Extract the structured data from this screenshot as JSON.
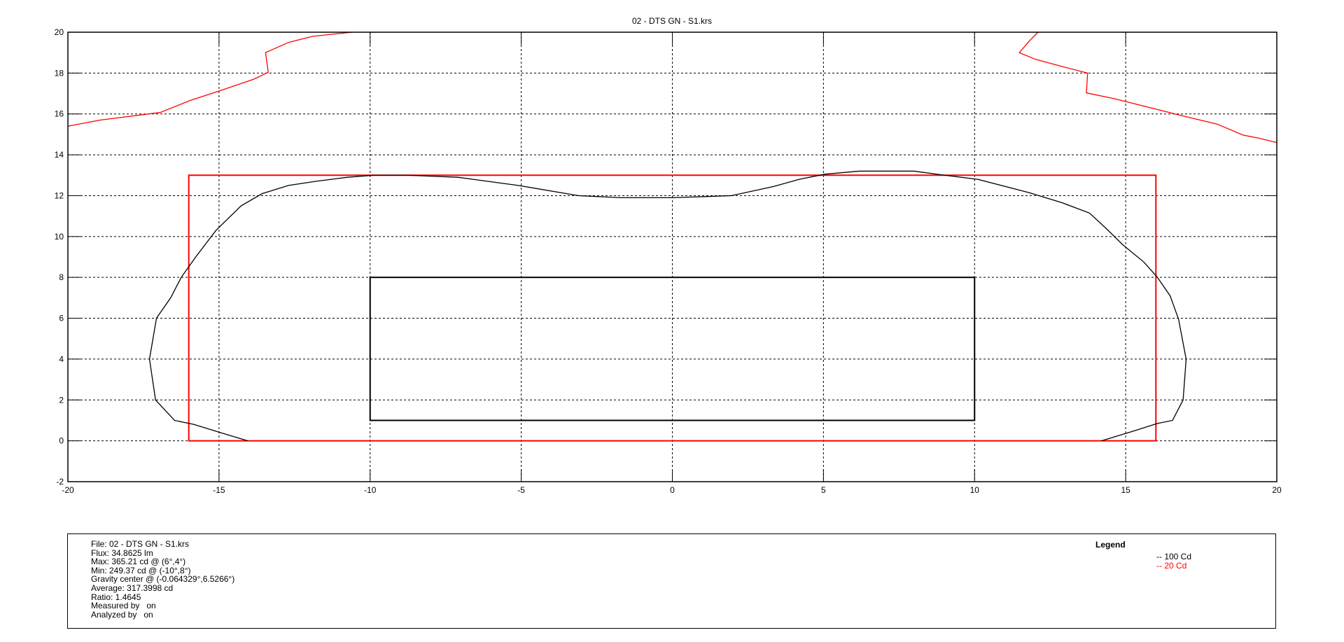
{
  "chart_data": {
    "type": "line",
    "title": "02 - DTS GN - S1.krs",
    "xlabel": "",
    "ylabel": "",
    "xlim": [
      -20,
      20
    ],
    "ylim": [
      -2,
      20
    ],
    "xticks": [
      -20,
      -15,
      -10,
      -5,
      0,
      5,
      10,
      15,
      20
    ],
    "yticks": [
      -2,
      0,
      2,
      4,
      6,
      8,
      10,
      12,
      14,
      16,
      18,
      20
    ],
    "grid": true,
    "legend_position": "bottom-right",
    "series": [
      {
        "name": "100 Cd",
        "color": "#000000",
        "points": [
          [
            -14.05,
            0
          ],
          [
            -14.84,
            0.35
          ],
          [
            -15.83,
            0.8
          ],
          [
            -16.47,
            1.0
          ],
          [
            -17.1,
            2.0
          ],
          [
            -17.3,
            4.0
          ],
          [
            -17.07,
            6.0
          ],
          [
            -16.6,
            7.0
          ],
          [
            -16.25,
            8.0
          ],
          [
            -15.77,
            9.0
          ],
          [
            -15.1,
            10.3
          ],
          [
            -14.27,
            11.5
          ],
          [
            -13.57,
            12.1
          ],
          [
            -12.7,
            12.5
          ],
          [
            -11.8,
            12.7
          ],
          [
            -10.75,
            12.9
          ],
          [
            -9.85,
            13.0
          ],
          [
            -8.8,
            13.0
          ],
          [
            -7.1,
            12.9
          ],
          [
            -5.1,
            12.5
          ],
          [
            -3.1,
            12.0
          ],
          [
            -1.7,
            11.9
          ],
          [
            0,
            11.9
          ],
          [
            1.95,
            12.0
          ],
          [
            3.35,
            12.45
          ],
          [
            4.2,
            12.8
          ],
          [
            5.05,
            13.05
          ],
          [
            6.18,
            13.2
          ],
          [
            8,
            13.2
          ],
          [
            9,
            13.0
          ],
          [
            10.1,
            12.8
          ],
          [
            11.8,
            12.15
          ],
          [
            12.9,
            11.65
          ],
          [
            13.8,
            11.15
          ],
          [
            14.35,
            10.4
          ],
          [
            14.9,
            9.6
          ],
          [
            15.6,
            8.75
          ],
          [
            16.05,
            8.0
          ],
          [
            16.47,
            7.1
          ],
          [
            16.75,
            5.95
          ],
          [
            17.0,
            4.0
          ],
          [
            16.9,
            2.0
          ],
          [
            16.55,
            1.0
          ],
          [
            16.05,
            0.85
          ],
          [
            15.2,
            0.45
          ],
          [
            14.2,
            0
          ]
        ]
      },
      {
        "name": "20 Cd",
        "color": "#ff0000",
        "points": [
          [
            -20,
            15.4
          ],
          [
            -18.93,
            15.7
          ],
          [
            -16.95,
            16.07
          ],
          [
            -15.97,
            16.65
          ],
          [
            -14.84,
            17.2
          ],
          [
            -13.85,
            17.7
          ],
          [
            -13.37,
            18.04
          ],
          [
            -13.46,
            19.0
          ],
          [
            -12.7,
            19.5
          ],
          [
            -11.9,
            19.8
          ],
          [
            -10.6,
            20
          ]
        ]
      },
      {
        "name": "20 Cd",
        "color": "#ff0000",
        "points": [
          [
            12.1,
            20
          ],
          [
            11.83,
            19.6
          ],
          [
            11.48,
            19.0
          ],
          [
            12.02,
            18.67
          ],
          [
            12.95,
            18.3
          ],
          [
            13.74,
            18.0
          ],
          [
            13.7,
            17.03
          ],
          [
            14.64,
            16.74
          ],
          [
            15.77,
            16.32
          ],
          [
            16.9,
            15.9
          ],
          [
            18.03,
            15.5
          ],
          [
            18.87,
            14.97
          ],
          [
            19.44,
            14.8
          ],
          [
            20,
            14.6
          ]
        ]
      }
    ],
    "rectangles": [
      {
        "color": "#ff0000",
        "x": [
          -16,
          16
        ],
        "y": [
          0,
          13
        ]
      },
      {
        "color": "#000000",
        "x": [
          -10,
          10
        ],
        "y": [
          1,
          8
        ]
      }
    ]
  },
  "info": {
    "lines": [
      "File: 02 - DTS GN - S1.krs",
      "Flux: 34.8625 lm",
      "Max: 365.21 cd @ (6°,4°)",
      "Min: 249.37 cd @ (-10°,8°)",
      "Gravity center @ (-0.064329°,6.5266°)",
      "Average: 317.3998 cd",
      "Ratio: 1.4645",
      "Measured by   on",
      "Analyzed by   on"
    ]
  },
  "legend": {
    "title": "Legend",
    "items": [
      {
        "label": "-- 100 Cd",
        "color": "#000000"
      },
      {
        "label": "-- 20 Cd",
        "color": "#ff0000"
      }
    ]
  }
}
